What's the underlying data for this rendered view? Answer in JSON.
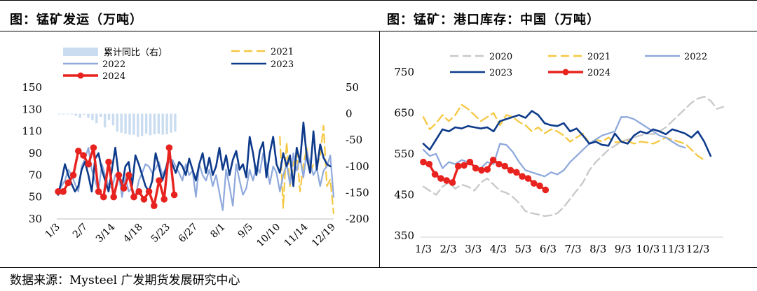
{
  "left_title": "图：锰矿发运（万吨）",
  "right_title": "图：锰矿：港口库存：中国（万吨）",
  "source": "数据来源：Mysteel 广发期货发展研究中心",
  "colors": {
    "s2020": "#c8c8c8",
    "s2021": "#f5c842",
    "s2022": "#8fa9dc",
    "s2023": "#0d3a8a",
    "s2024": "#e8231f",
    "bar": "#c9dcf0"
  },
  "chart_data": [
    {
      "type": "line",
      "title": "锰矿发运（万吨）",
      "x_ticks": [
        "1/3",
        "2/7",
        "3/14",
        "4/18",
        "5/23",
        "6/27",
        "8/1",
        "9/5",
        "10/10",
        "11/14",
        "12/19"
      ],
      "y_left_ticks": [
        "150",
        "130",
        "110",
        "90",
        "70",
        "50",
        "30"
      ],
      "y_right_ticks": [
        "50",
        "0",
        "-50",
        "-100",
        "-150",
        "-200"
      ],
      "ylim": [
        30,
        150
      ],
      "ylim_right": [
        -200,
        50
      ],
      "legend": [
        "累计同比（右）",
        "2021",
        "2022",
        "2023",
        "2024"
      ],
      "bars_right": {
        "name": "累计同比（右）",
        "values": [
          0,
          0,
          -1,
          -1,
          -4,
          -8,
          -2,
          -8,
          -12,
          -18,
          -6,
          -26,
          -12,
          -22,
          -34,
          -36,
          -38,
          -40,
          -40,
          -44,
          -42,
          -38,
          -41,
          -39,
          -38,
          -40,
          -39,
          -36,
          -34
        ]
      },
      "series": [
        {
          "name": "2021",
          "values": [
            null,
            null,
            null,
            null,
            null,
            null,
            null,
            null,
            null,
            null,
            null,
            null,
            null,
            null,
            null,
            null,
            null,
            null,
            null,
            null,
            null,
            null,
            null,
            null,
            null,
            null,
            null,
            null,
            null,
            null,
            null,
            null,
            null,
            null,
            null,
            null,
            null,
            null,
            null,
            null,
            null,
            null,
            null,
            null,
            null,
            null,
            null,
            null,
            null,
            null,
            null,
            null,
            null,
            null,
            null,
            null,
            null,
            null,
            null,
            null,
            null,
            null,
            null,
            null,
            null,
            null,
            105,
            40,
            100,
            60,
            80,
            92,
            55,
            80,
            95,
            72,
            80,
            78,
            88,
            115,
            60,
            66,
            35
          ]
        },
        {
          "name": "2022",
          "values": [
            55,
            60,
            65,
            75,
            70,
            62,
            55,
            78,
            85,
            95,
            75,
            65,
            55,
            80,
            70,
            60,
            58,
            70,
            72,
            50,
            68,
            55,
            58,
            50,
            65,
            72,
            80,
            78,
            72,
            76,
            82,
            70,
            76,
            82,
            84,
            78,
            72,
            65,
            80,
            70,
            74,
            50,
            80,
            70,
            65,
            75,
            60,
            70,
            54,
            38,
            75,
            60,
            42,
            80,
            65,
            52,
            58,
            75,
            65,
            78,
            72,
            90,
            80,
            62,
            78,
            72,
            55,
            70,
            80,
            62,
            90,
            74,
            86,
            68,
            92,
            80,
            70,
            76,
            60,
            74,
            78,
            88,
            50
          ]
        },
        {
          "name": "2023",
          "values": [
            52,
            65,
            80,
            70,
            62,
            55,
            60,
            75,
            82,
            70,
            55,
            85,
            90,
            75,
            65,
            55,
            75,
            95,
            70,
            60,
            78,
            82,
            60,
            88,
            80,
            70,
            60,
            55,
            65,
            90,
            78,
            65,
            75,
            88,
            80,
            72,
            82,
            78,
            70,
            85,
            75,
            65,
            80,
            90,
            72,
            86,
            70,
            78,
            95,
            75,
            88,
            70,
            84,
            92,
            75,
            80,
            68,
            105,
            90,
            70,
            92,
            100,
            68,
            90,
            105,
            80,
            72,
            90,
            78,
            88,
            60,
            95,
            82,
            118,
            86,
            72,
            110,
            75,
            98,
            86,
            80,
            78
          ]
        },
        {
          "name": "2024",
          "values": [
            55,
            55,
            63,
            70,
            92,
            88,
            80,
            95,
            55,
            50,
            82,
            50,
            70,
            58,
            70,
            50,
            55,
            48,
            55,
            42,
            65,
            48,
            95,
            52
          ]
        }
      ]
    },
    {
      "type": "line",
      "title": "锰矿：港口库存：中国（万吨）",
      "x_ticks": [
        "1/3",
        "2/3",
        "3/3",
        "4/3",
        "5/3",
        "6/3",
        "7/3",
        "8/3",
        "9/3",
        "10/3",
        "11/3",
        "12/3"
      ],
      "y_ticks": [
        "750",
        "650",
        "550",
        "450",
        "350"
      ],
      "ylim": [
        350,
        750
      ],
      "legend": [
        "2020",
        "2021",
        "2022",
        "2023",
        "2024"
      ],
      "series": [
        {
          "name": "2020",
          "values": [
            470,
            460,
            450,
            470,
            480,
            465,
            475,
            470,
            460,
            480,
            490,
            475,
            460,
            455,
            445,
            430,
            410,
            405,
            402,
            398,
            400,
            405,
            420,
            440,
            460,
            480,
            510,
            530,
            545,
            560,
            570,
            580,
            585,
            590,
            595,
            600,
            598,
            605,
            615,
            630,
            645,
            660,
            675,
            685,
            690,
            680,
            660,
            665
          ]
        },
        {
          "name": "2021",
          "values": [
            640,
            610,
            625,
            645,
            630,
            645,
            670,
            660,
            645,
            630,
            640,
            650,
            620,
            645,
            640,
            628,
            620,
            605,
            615,
            600,
            610,
            605,
            595,
            580,
            590,
            600,
            575,
            585,
            580,
            590,
            578,
            580,
            582,
            575,
            580,
            578,
            575,
            582,
            590,
            585,
            580,
            575,
            560,
            545,
            535
          ]
        },
        {
          "name": "2022",
          "values": [
            560,
            545,
            550,
            515,
            530,
            525,
            535,
            530,
            520,
            515,
            530,
            525,
            575,
            572,
            555,
            530,
            510,
            505,
            500,
            495,
            505,
            500,
            510,
            530,
            545,
            560,
            575,
            585,
            595,
            600,
            605,
            640,
            640,
            635,
            625,
            615,
            605,
            595,
            590,
            580,
            570,
            565
          ]
        },
        {
          "name": "2023",
          "values": [
            575,
            560,
            585,
            610,
            605,
            615,
            612,
            618,
            615,
            612,
            615,
            605,
            630,
            635,
            640,
            645,
            638,
            655,
            645,
            625,
            620,
            618,
            625,
            605,
            612,
            595,
            575,
            580,
            572,
            570,
            600,
            580,
            575,
            595,
            605,
            600,
            610,
            605,
            598,
            610,
            605,
            600,
            590,
            605,
            580,
            545
          ]
        },
        {
          "name": "2024",
          "values": [
            530,
            525,
            500,
            490,
            485,
            480,
            520,
            522,
            530,
            515,
            510,
            512,
            535,
            525,
            520,
            510,
            505,
            495,
            490,
            478,
            472,
            462
          ]
        }
      ]
    }
  ]
}
